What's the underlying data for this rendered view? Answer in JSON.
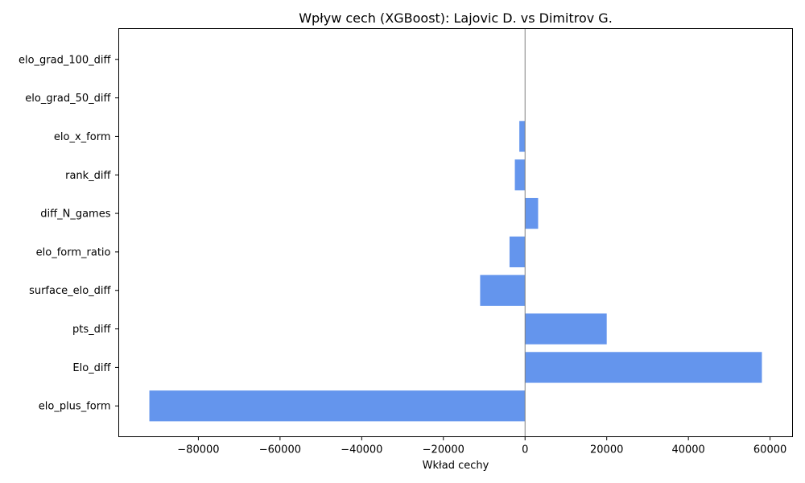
{
  "chart_data": {
    "type": "bar",
    "orientation": "horizontal",
    "title": "Wpływ cech (XGBoost): Lajovic D. vs Dimitrov G.",
    "xlabel": "Wkład cechy",
    "ylabel": "",
    "categories": [
      "elo_plus_form",
      "Elo_diff",
      "pts_diff",
      "surface_elo_diff",
      "elo_form_ratio",
      "diff_N_games",
      "rank_diff",
      "elo_x_form",
      "elo_grad_50_diff",
      "elo_grad_100_diff"
    ],
    "values": [
      -92000,
      58000,
      20000,
      -11000,
      -3800,
      3200,
      -2500,
      -1400,
      0,
      0
    ],
    "xlim": [
      -99500,
      65500
    ],
    "xticks": [
      -80000,
      -60000,
      -40000,
      -20000,
      0,
      20000,
      40000,
      60000
    ],
    "xtick_labels": [
      "−80000",
      "−60000",
      "−40000",
      "−20000",
      "0",
      "20000",
      "40000",
      "60000"
    ],
    "reference_line": 0,
    "grid": false,
    "legend": false,
    "colors": {
      "bar": "#6495ed",
      "reference_line": "#808080",
      "axes": "#000000"
    }
  }
}
